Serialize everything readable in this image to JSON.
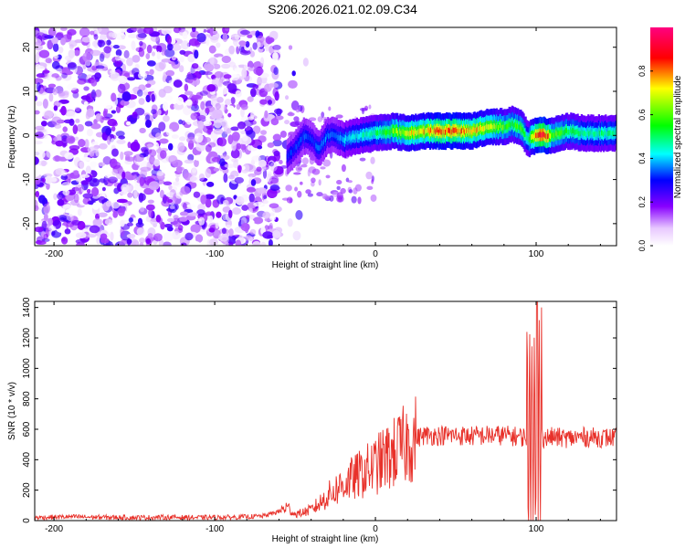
{
  "title": "S206.2026.021.02.09.C34",
  "chart_data": [
    {
      "type": "heatmap",
      "xlabel": "Height of straight line (km)",
      "ylabel": "Frequency (Hz)",
      "xlim": [
        -212,
        150
      ],
      "ylim": [
        -25,
        24.5
      ],
      "x_ticks": [
        -200,
        -100,
        0,
        100
      ],
      "y_ticks": [
        -20,
        -10,
        0,
        10,
        20
      ],
      "colorbar": {
        "label": "Normalized spectral amplitude",
        "range": [
          0,
          1
        ],
        "ticks": [
          0.0,
          0.2,
          0.4,
          0.6,
          0.8
        ],
        "tick_labels": [
          "0.0",
          "0.2",
          "0.4",
          "0.6",
          "0.8"
        ],
        "colormap": [
          "#ffffff",
          "#8800ff",
          "#0000ff",
          "#00ffff",
          "#00ff00",
          "#ffff00",
          "#ff0000",
          "#ff0080"
        ]
      },
      "ridge": {
        "x": [
          -55,
          -50,
          -45,
          -40,
          -35,
          -30,
          -25,
          -20,
          -10,
          0,
          10,
          20,
          30,
          40,
          50,
          60,
          70,
          80,
          85,
          90,
          95,
          100,
          105,
          110,
          120,
          130,
          140,
          150
        ],
        "frequency": [
          -5,
          -3,
          0,
          -1,
          -3,
          0,
          0,
          -1,
          0,
          0.5,
          1,
          0.5,
          1,
          1,
          1,
          1,
          2,
          2,
          2.5,
          2,
          -1,
          0,
          0,
          0,
          1,
          0.5,
          0.5,
          0.5
        ],
        "amplitude": [
          0.3,
          0.3,
          0.35,
          0.3,
          0.35,
          0.35,
          0.35,
          0.4,
          0.45,
          0.5,
          0.6,
          0.7,
          0.75,
          0.8,
          0.8,
          0.75,
          0.7,
          0.6,
          0.55,
          0.6,
          0.5,
          0.85,
          0.9,
          0.6,
          0.55,
          0.5,
          0.5,
          0.5
        ]
      }
    },
    {
      "type": "line",
      "xlabel": "Height of straight line (km)",
      "ylabel": "SNR (10 * v/v)",
      "xlim": [
        -212,
        150
      ],
      "ylim": [
        0,
        1440
      ],
      "x_ticks": [
        -200,
        -100,
        0,
        100
      ],
      "y_ticks": [
        0,
        200,
        400,
        600,
        800,
        1000,
        1200,
        1400
      ],
      "series": [
        {
          "color": "#e8312a",
          "x": [
            -212,
            -190,
            -170,
            -150,
            -130,
            -110,
            -90,
            -80,
            -70,
            -60,
            -55,
            -50,
            -40,
            -35,
            -30,
            -25,
            -20,
            -15,
            -10,
            -5,
            0,
            5,
            10,
            15,
            20,
            25,
            30,
            40,
            50,
            60,
            70,
            80,
            90,
            95,
            98,
            100,
            102,
            105,
            110,
            120,
            130,
            140,
            150
          ],
          "y": [
            20,
            25,
            22,
            20,
            22,
            20,
            22,
            25,
            30,
            60,
            90,
            40,
            70,
            110,
            160,
            200,
            240,
            270,
            300,
            330,
            360,
            400,
            430,
            470,
            510,
            540,
            560,
            560,
            560,
            555,
            560,
            560,
            550,
            550,
            600,
            620,
            560,
            540,
            550,
            540,
            550,
            545,
            545
          ]
        }
      ]
    }
  ]
}
